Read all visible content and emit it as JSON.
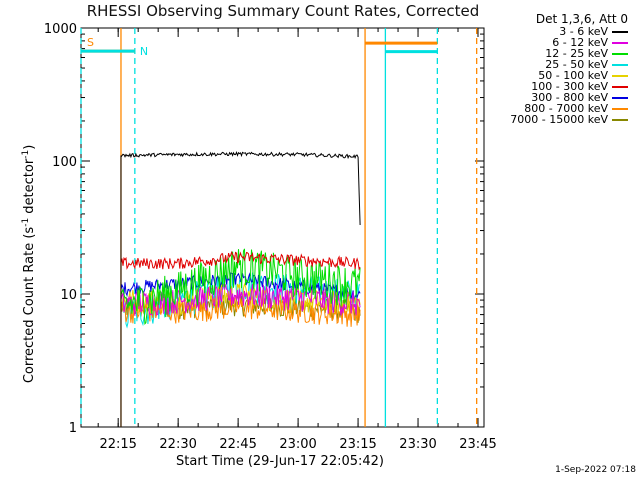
{
  "chart_data": {
    "type": "line",
    "title": "RHESSI Observing Summary Count Rates, Corrected",
    "xlabel": "Start Time (29-Jun-17 22:05:42)",
    "ylabel_parts": [
      "Corrected Count Rate (s",
      "-1",
      " detector",
      "-1",
      ")"
    ],
    "yscale": "log",
    "ylim": [
      1,
      1000
    ],
    "xlim": [
      "22:05:42",
      "23:46:30"
    ],
    "yticks": [
      {
        "v": 1,
        "label": "1"
      },
      {
        "v": 10,
        "label": "10"
      },
      {
        "v": 100,
        "label": "100"
      },
      {
        "v": 1000,
        "label": "1000"
      }
    ],
    "xticks": [
      {
        "t": "22:15",
        "label": "22:15"
      },
      {
        "t": "22:30",
        "label": "22:30"
      },
      {
        "t": "22:45",
        "label": "22:45"
      },
      {
        "t": "23:00",
        "label": "23:00"
      },
      {
        "t": "23:15",
        "label": "23:15"
      },
      {
        "t": "23:30",
        "label": "23:30"
      },
      {
        "t": "23:45",
        "label": "23:45"
      }
    ],
    "legend_header": "Det 1,3,6, Att 0",
    "legend_position": "right, outside plot",
    "series": [
      {
        "name": "3 - 6 keV",
        "color": "#000000",
        "start": "22:15:42",
        "end": "23:15:30",
        "x": [
          "22:15:42",
          "22:30:00",
          "22:45:00",
          "23:00:00",
          "23:15:00",
          "23:15:30"
        ],
        "y": [
          110,
          112,
          113,
          112,
          108,
          33
        ]
      },
      {
        "name": "6 - 12 keV",
        "color": "#e000e0",
        "start": "22:15:42",
        "end": "23:15:30",
        "x": [
          "22:15:42",
          "22:30:00",
          "22:45:00",
          "23:00:00",
          "23:15:00"
        ],
        "y": [
          8.5,
          9.0,
          10.0,
          9.5,
          8.5
        ]
      },
      {
        "name": "12 - 25 keV",
        "color": "#00dd00",
        "start": "22:15:42",
        "end": "23:15:30",
        "x": [
          "22:15:42",
          "22:30:00",
          "22:45:00",
          "23:00:00",
          "23:15:00"
        ],
        "y": [
          8.0,
          11.0,
          17.0,
          14.0,
          12.0
        ]
      },
      {
        "name": "25 - 50 keV",
        "color": "#00e0e0",
        "start": "22:15:42",
        "end": "23:15:30",
        "x": [
          "22:15:42",
          "22:30:00",
          "22:45:00",
          "23:00:00",
          "23:15:00"
        ],
        "y": [
          7.0,
          9.0,
          12.0,
          11.0,
          10.0
        ]
      },
      {
        "name": "50 - 100 keV",
        "color": "#e6d200",
        "start": "22:15:42",
        "end": "23:15:30",
        "x": [
          "22:15:42",
          "22:30:00",
          "22:45:00",
          "23:00:00",
          "23:15:00"
        ],
        "y": [
          9.0,
          9.0,
          10.0,
          9.0,
          8.5
        ]
      },
      {
        "name": "100 - 300 keV",
        "color": "#e00000",
        "start": "22:15:42",
        "end": "23:15:30",
        "x": [
          "22:15:42",
          "22:30:00",
          "22:45:00",
          "23:00:00",
          "23:15:00"
        ],
        "y": [
          17.0,
          17.0,
          19.0,
          18.0,
          17.0
        ]
      },
      {
        "name": "300 - 800 keV",
        "color": "#0000e0",
        "start": "22:15:42",
        "end": "23:15:30",
        "x": [
          "22:15:42",
          "22:30:00",
          "22:45:00",
          "23:00:00",
          "23:15:00"
        ],
        "y": [
          11.0,
          12.0,
          13.0,
          11.5,
          10.0
        ]
      },
      {
        "name": "800 - 7000 keV",
        "color": "#ff8800",
        "start": "22:15:42",
        "end": "23:15:30",
        "x": [
          "22:15:42",
          "22:30:00",
          "22:45:00",
          "23:00:00",
          "23:15:00"
        ],
        "y": [
          7.5,
          7.5,
          8.0,
          7.5,
          7.0
        ]
      },
      {
        "name": "7000 - 15000 keV",
        "color": "#888800",
        "start": "22:15:42",
        "end": "23:15:30",
        "x": [
          "22:15:42",
          "22:30:00",
          "22:45:00",
          "23:00:00",
          "23:15:00"
        ],
        "y": [
          8.0,
          8.0,
          8.5,
          8.0,
          7.5
        ]
      }
    ],
    "vertical_markers": [
      {
        "t": "22:15:42",
        "color": "#ff8800",
        "style": "solid"
      },
      {
        "t": "23:16:45",
        "color": "#ff8800",
        "style": "solid"
      },
      {
        "t": "23:44:40",
        "color": "#ff8800",
        "style": "dashed"
      },
      {
        "t": "22:05:42",
        "color": "#00e0e0",
        "style": "dashed"
      },
      {
        "t": "22:19:10",
        "color": "#00e0e0",
        "style": "dashed"
      },
      {
        "t": "23:21:50",
        "color": "#00e0e0",
        "style": "solid"
      },
      {
        "t": "23:34:50",
        "color": "#00e0e0",
        "style": "dashed"
      }
    ],
    "flag_bars": [
      {
        "label": "S",
        "color": "#ff8800",
        "start": "22:05:42",
        "end": "22:19:10",
        "level": 670
      },
      {
        "label": "N",
        "color": "#00e0e0",
        "start": "22:05:42",
        "end": "22:19:10",
        "level": 670
      },
      {
        "label": "",
        "color": "#ff8800",
        "start": "23:16:45",
        "end": "23:34:50",
        "level": 770
      },
      {
        "label": "",
        "color": "#00e0e0",
        "start": "23:21:50",
        "end": "23:34:50",
        "level": 665
      }
    ]
  },
  "timestamp": "1-Sep-2022 07:18"
}
